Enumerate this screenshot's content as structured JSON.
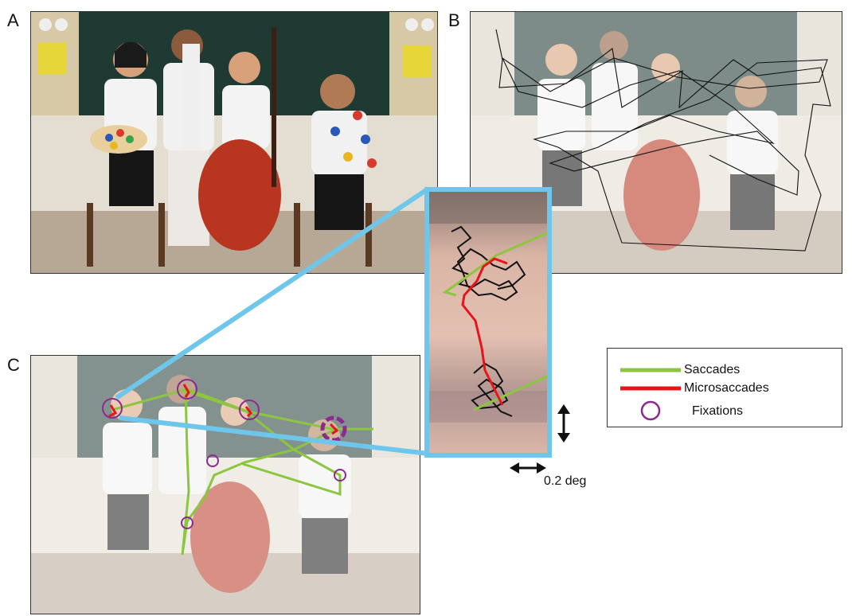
{
  "panels": {
    "a": {
      "letter": "A"
    },
    "b": {
      "letter": "B"
    },
    "c": {
      "letter": "C"
    }
  },
  "legend": {
    "saccades": "Saccades",
    "microsaccades": "Microsaccades",
    "fixations": "Fixations"
  },
  "scale": {
    "label": "0.2 deg"
  },
  "colors": {
    "saccade": "#8cc63f",
    "microsaccade": "#e8141c",
    "fixation": "#8b2a8f",
    "zoom": "#6ec6ea",
    "trace": "#111111"
  }
}
